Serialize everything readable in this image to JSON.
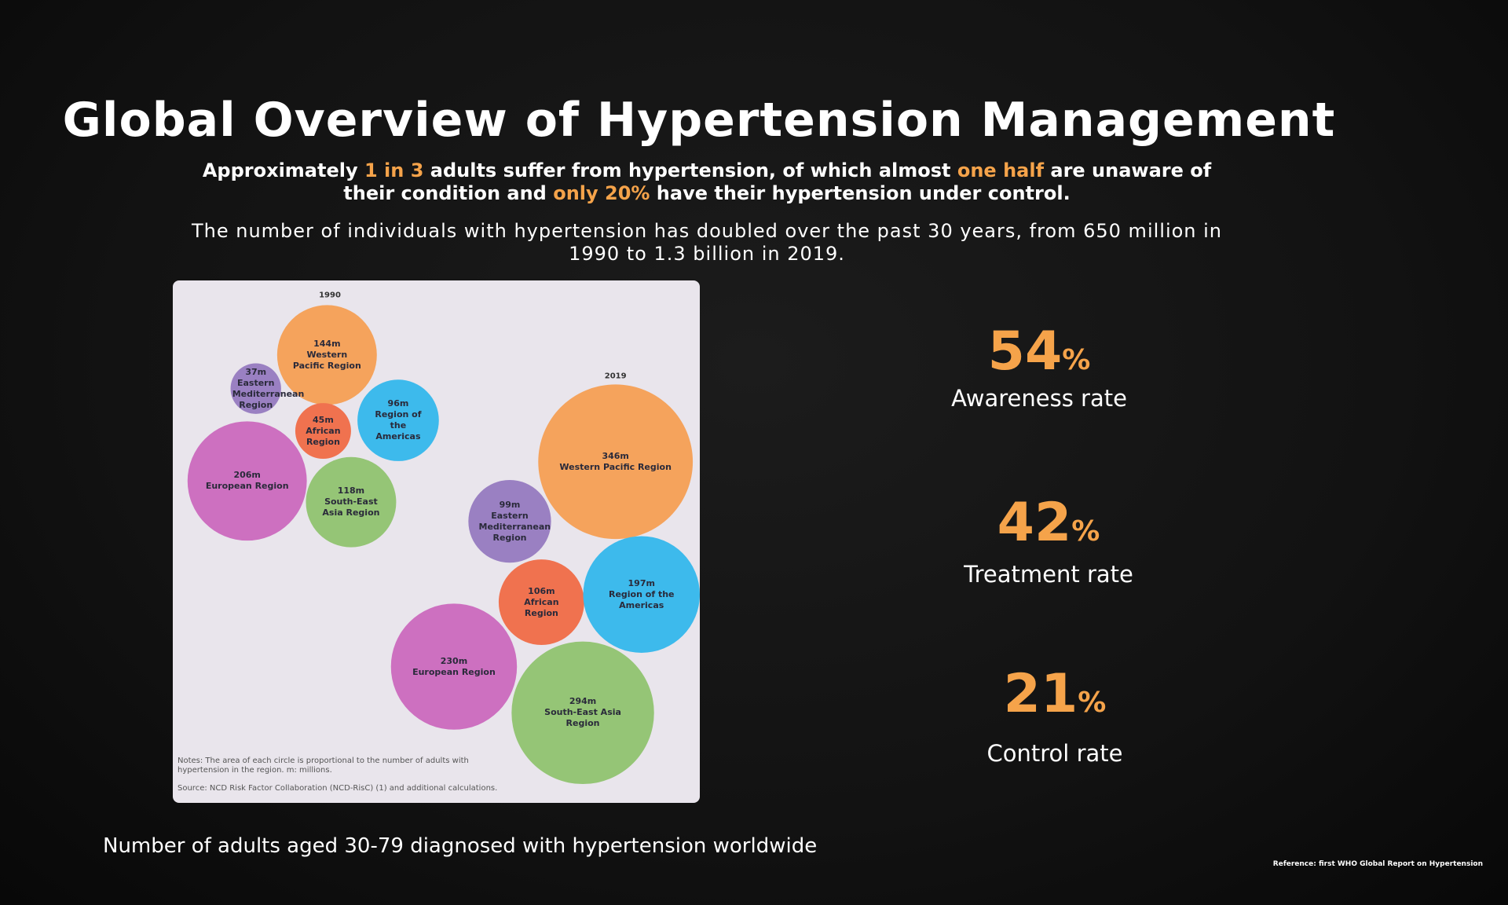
{
  "header": {
    "title": "Global Overview of Hypertension Management",
    "subtitle": [
      {
        "text": "Approximately ",
        "highlight": false
      },
      {
        "text": "1 in 3",
        "highlight": true
      },
      {
        "text": " adults suffer from hypertension, of which almost ",
        "highlight": false
      },
      {
        "text": "one half",
        "highlight": true
      },
      {
        "text": " are unaware of their condition and ",
        "highlight": false
      },
      {
        "text": "only 20%",
        "highlight": true
      },
      {
        "text": " have their hypertension under control.",
        "highlight": false
      }
    ],
    "paragraph": "The number of individuals with hypertension has doubled over the past 30 years, from 650 million in 1990 to 1.3 billion in 2019."
  },
  "chart_data": {
    "type": "bubble",
    "categories": [
      "Western Pacific Region",
      "Eastern Mediterranean Region",
      "African Region",
      "Region of the Americas",
      "European Region",
      "South-East Asia Region"
    ],
    "colors": [
      "#f5a35c",
      "#9a80c2",
      "#f0724f",
      "#3dbaec",
      "#cd70c0",
      "#95c576"
    ],
    "series": [
      {
        "name": "1990",
        "values": [
          144,
          37,
          45,
          96,
          206,
          118
        ],
        "value_labels": [
          "144m",
          "37m",
          "45m",
          "96m",
          "206m",
          "118m"
        ]
      },
      {
        "name": "2019",
        "values": [
          346,
          99,
          106,
          197,
          230,
          294
        ],
        "value_labels": [
          "346m",
          "99m",
          "106m",
          "197m",
          "230m",
          "294m"
        ]
      }
    ],
    "notes": "Notes: The area of each circle is proportional to the number of adults with hypertension in the region. m: millions.",
    "source": "Source: NCD Risk Factor Collaboration (NCD-RisC) (1) and additional calculations."
  },
  "caption": "Number of adults aged 30-79 diagnosed with hypertension worldwide",
  "stats": [
    {
      "value": 54,
      "unit": "%",
      "label": "Awareness rate"
    },
    {
      "value": 42,
      "unit": "%",
      "label": "Treatment rate"
    },
    {
      "value": 21,
      "unit": "%",
      "label": "Control rate"
    }
  ],
  "reference": "Reference: first WHO Global Report on Hypertension"
}
